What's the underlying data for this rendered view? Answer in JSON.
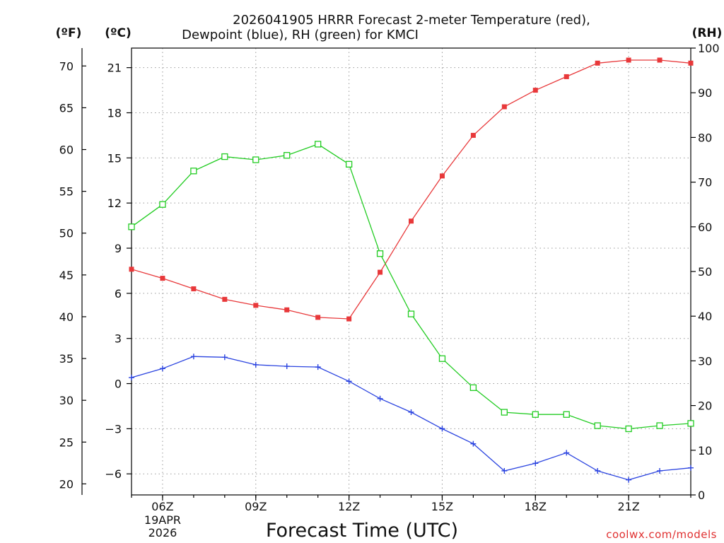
{
  "chart_data": {
    "type": "line",
    "title_lines": [
      "2026041905 HRRR Forecast 2-meter Temperature (red),",
      "Dewpoint (blue), RH (green) for KMCI"
    ],
    "units": {
      "left_f": "(ºF)",
      "left_c": "(ºC)",
      "right": "(RH)"
    },
    "xlabel": "Forecast Time (UTC)",
    "credit": "coolwx.com/models",
    "x_hours": [
      5,
      6,
      7,
      8,
      9,
      10,
      11,
      12,
      13,
      14,
      15,
      16,
      17,
      18,
      19,
      20,
      21,
      22,
      23
    ],
    "xlim": [
      5,
      23
    ],
    "x_ticks": [
      {
        "hour": 6,
        "label": "06Z",
        "sub": [
          "19APR",
          "2026"
        ]
      },
      {
        "hour": 9,
        "label": "09Z",
        "sub": []
      },
      {
        "hour": 12,
        "label": "12Z",
        "sub": []
      },
      {
        "hour": 15,
        "label": "15Z",
        "sub": []
      },
      {
        "hour": 18,
        "label": "18Z",
        "sub": []
      },
      {
        "hour": 21,
        "label": "21Z",
        "sub": []
      }
    ],
    "celsius_axis": {
      "ylim": [
        -7.4,
        22.3
      ],
      "ticks": [
        -6,
        -3,
        0,
        3,
        6,
        9,
        12,
        15,
        18,
        21
      ],
      "labels": [
        "−6",
        "−3",
        "0",
        "3",
        "6",
        "9",
        "12",
        "15",
        "18",
        "21"
      ]
    },
    "fahrenheit_axis": {
      "ticks": [
        20,
        25,
        30,
        35,
        40,
        45,
        50,
        55,
        60,
        65,
        70
      ],
      "labels": [
        "20",
        "25",
        "30",
        "35",
        "40",
        "45",
        "50",
        "55",
        "60",
        "65",
        "70"
      ]
    },
    "rh_axis": {
      "ylim": [
        0,
        100
      ],
      "ticks": [
        0,
        10,
        20,
        30,
        40,
        50,
        60,
        70,
        80,
        90,
        100
      ],
      "labels": [
        "0",
        "10",
        "20",
        "30",
        "40",
        "50",
        "60",
        "70",
        "80",
        "90",
        "100"
      ]
    },
    "series": [
      {
        "name": "Temperature",
        "axis": "celsius",
        "color": "#e8383a",
        "marker": "filled-square",
        "values": [
          7.6,
          7.0,
          6.3,
          5.6,
          5.2,
          4.9,
          4.4,
          4.3,
          7.4,
          10.8,
          13.8,
          16.5,
          18.4,
          19.5,
          20.4,
          21.3,
          21.5,
          21.5,
          21.3
        ]
      },
      {
        "name": "Dewpoint",
        "axis": "celsius",
        "color": "#2b44e0",
        "marker": "plus",
        "values": [
          0.4,
          1.0,
          1.8,
          1.75,
          1.25,
          1.15,
          1.1,
          0.15,
          -1.0,
          -1.9,
          -3.0,
          -4.0,
          -5.8,
          -5.3,
          -4.6,
          -5.8,
          -6.4,
          -5.8,
          -5.6
        ]
      },
      {
        "name": "RH",
        "axis": "rh",
        "color": "#22cc22",
        "marker": "open-square",
        "values": [
          60,
          65,
          72.5,
          75.7,
          75,
          76,
          78.5,
          74,
          54,
          40.5,
          30.5,
          24,
          18.5,
          18,
          18,
          15.5,
          14.8,
          15.5,
          16
        ]
      }
    ]
  }
}
